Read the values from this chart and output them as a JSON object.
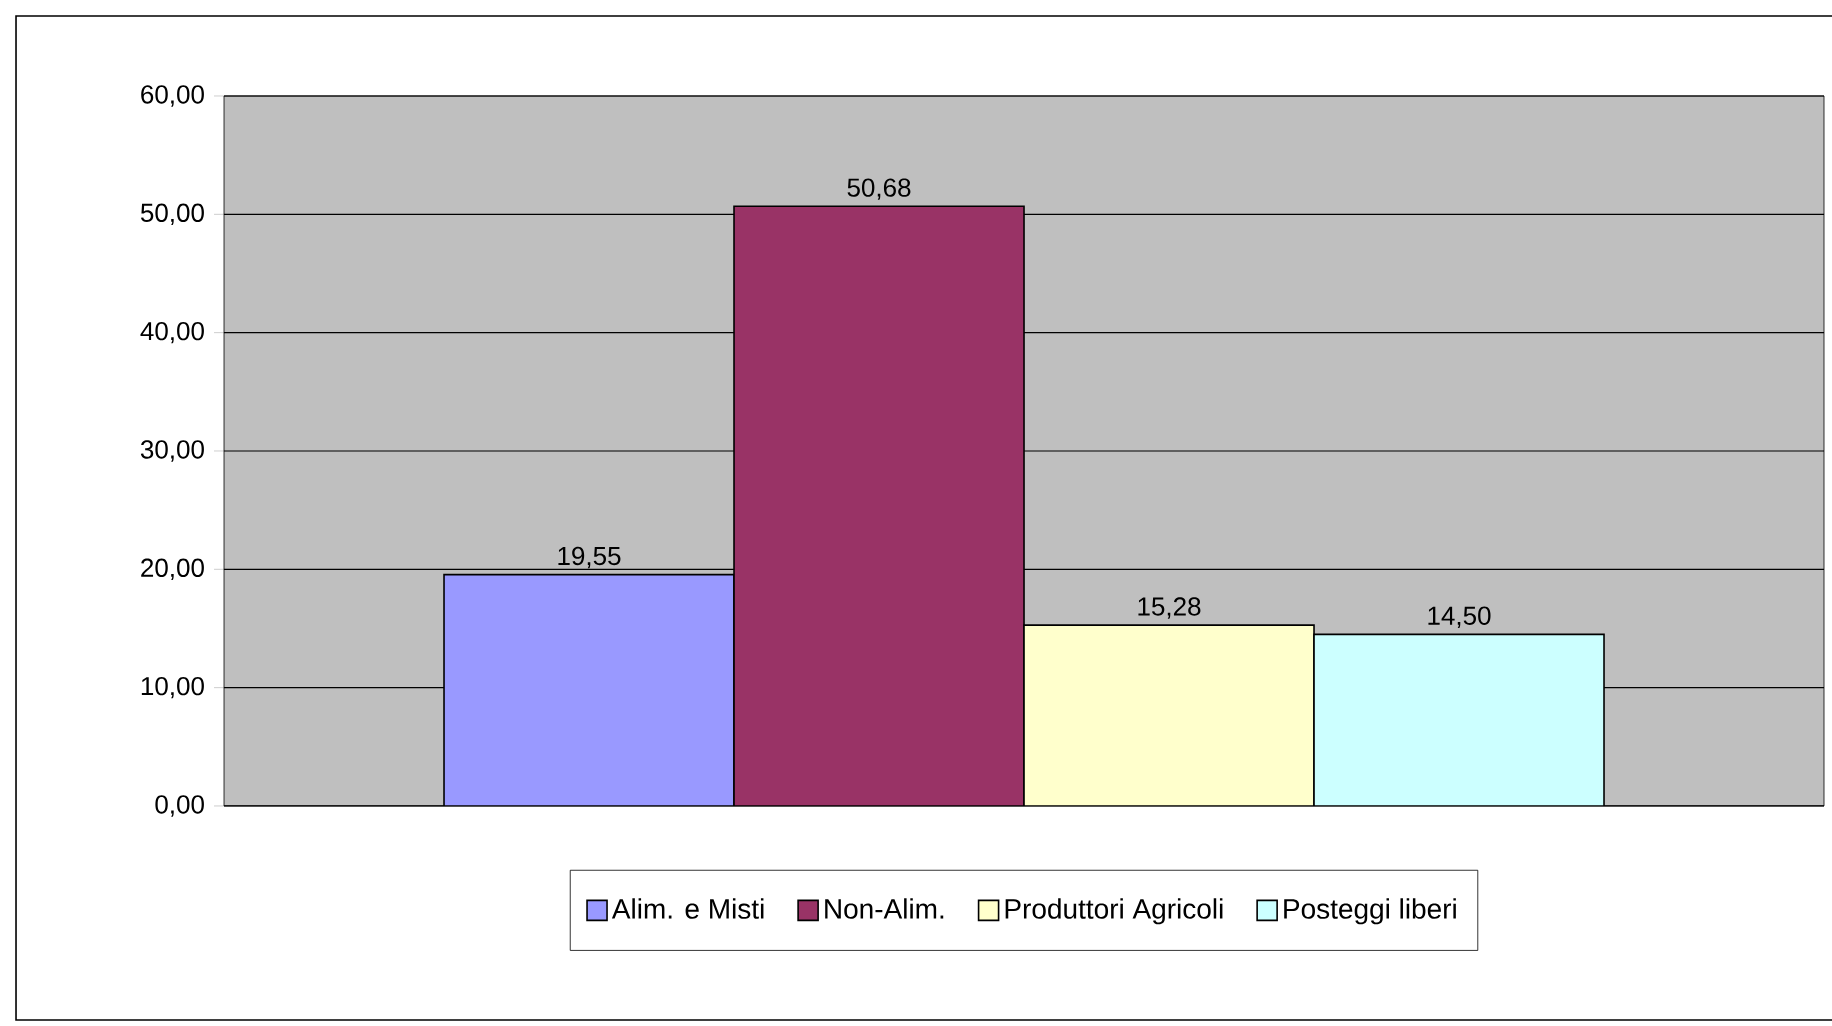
{
  "chart_data": {
    "type": "bar",
    "categories": [
      null
    ],
    "series": [
      {
        "name": "Alim. e Misti",
        "color": "#9999ff",
        "values": [
          19.55
        ],
        "value_labels": [
          "19,55"
        ]
      },
      {
        "name": "Non-Alim.",
        "color": "#993366",
        "values": [
          50.68
        ],
        "value_labels": [
          "50,68"
        ]
      },
      {
        "name": "Produttori Agricoli",
        "color": "#ffffcc",
        "values": [
          15.28
        ],
        "value_labels": [
          "15,28"
        ]
      },
      {
        "name": "Posteggi liberi",
        "color": "#ccffff",
        "values": [
          14.5
        ],
        "value_labels": [
          "14,50"
        ]
      }
    ],
    "ylim": [
      0,
      60
    ],
    "yticks": [
      {
        "value": 0,
        "label": "0,00"
      },
      {
        "value": 10,
        "label": "10,00"
      },
      {
        "value": 20,
        "label": "20,00"
      },
      {
        "value": 30,
        "label": "30,00"
      },
      {
        "value": 40,
        "label": "40,00"
      },
      {
        "value": 50,
        "label": "50,00"
      },
      {
        "value": 60,
        "label": "60,00"
      }
    ],
    "grid": "y",
    "legend": "bottom"
  }
}
